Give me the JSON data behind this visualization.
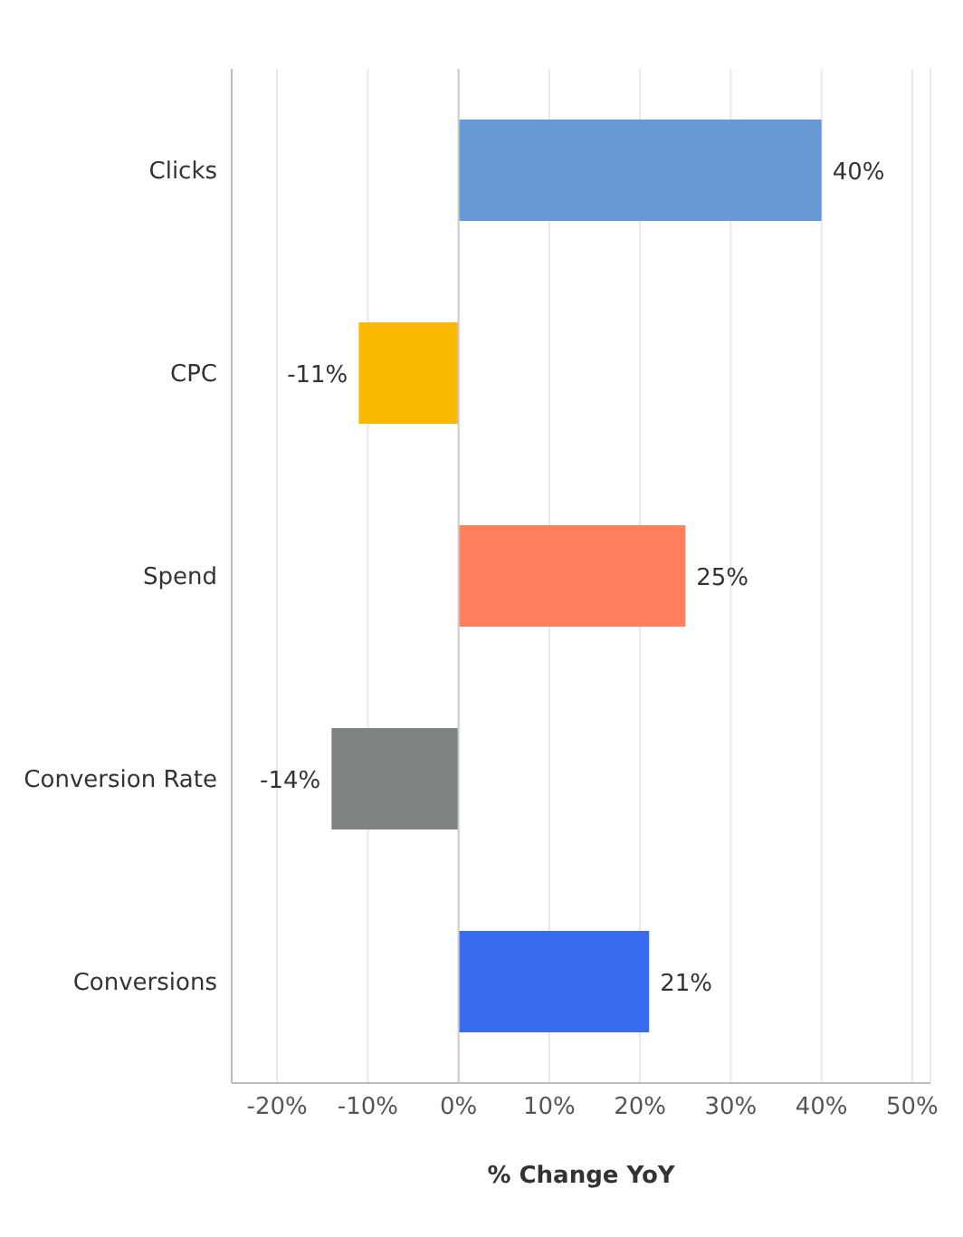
{
  "chart_data": {
    "type": "bar",
    "orientation": "horizontal",
    "xlabel": "% Change YoY",
    "categories": [
      "Clicks",
      "CPC",
      "Spend",
      "Conversion Rate",
      "Conversions"
    ],
    "values": [
      40,
      -11,
      25,
      -14,
      21
    ],
    "colors": [
      "#6699d6",
      "#fbb800",
      "#ff7f5e",
      "#7f8583",
      "#3a6bef"
    ],
    "value_labels": [
      "40%",
      "-11%",
      "25%",
      "-14%",
      "21%"
    ],
    "xlim": [
      -25,
      52
    ],
    "xticks": [
      {
        "value": -20,
        "label": "-20%"
      },
      {
        "value": -10,
        "label": "-10%"
      },
      {
        "value": 0,
        "label": "0%"
      },
      {
        "value": 10,
        "label": "10%"
      },
      {
        "value": 20,
        "label": "20%"
      },
      {
        "value": 30,
        "label": "30%"
      },
      {
        "value": 40,
        "label": "40%"
      },
      {
        "value": 50,
        "label": "50%"
      }
    ],
    "grid": "x"
  }
}
